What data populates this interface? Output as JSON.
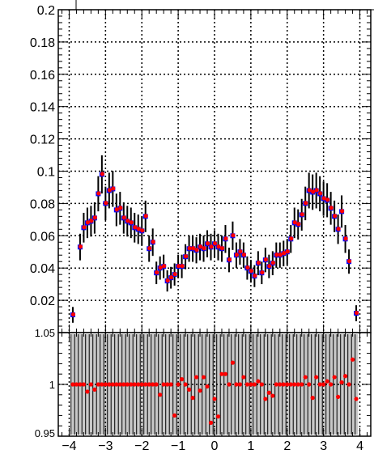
{
  "chart_data": [
    {
      "type": "scatter",
      "panel": "top",
      "xlim": [
        -4.3,
        4.3
      ],
      "ylim": [
        0,
        0.2
      ],
      "xticks": [
        -4,
        -3,
        -2,
        -1,
        0,
        1,
        2,
        3,
        4
      ],
      "xtick_labels": [
        "−4",
        "−3",
        "−2",
        "−1",
        "0",
        "1",
        "2",
        "3",
        "4"
      ],
      "yticks": [
        0,
        0.02,
        0.04,
        0.06,
        0.08,
        0.1,
        0.12,
        0.14,
        0.16,
        0.18,
        0.2
      ],
      "ytick_labels": [
        "",
        "0.02",
        "0.04",
        "0.06",
        "0.08",
        "0.1",
        "0.12",
        "0.14",
        "0.16",
        "0.18",
        "0.2"
      ],
      "grid": true,
      "series": [
        {
          "color": "#0000ff",
          "marker": "square",
          "x": [
            -3.9,
            -3.7,
            -3.6,
            -3.5,
            -3.4,
            -3.3,
            -3.2,
            -3.1,
            -3.0,
            -2.9,
            -2.8,
            -2.7,
            -2.6,
            -2.5,
            -2.4,
            -2.3,
            -2.2,
            -2.1,
            -2.0,
            -1.9,
            -1.8,
            -1.7,
            -1.6,
            -1.5,
            -1.4,
            -1.3,
            -1.2,
            -1.1,
            -1.0,
            -0.9,
            -0.8,
            -0.7,
            -0.6,
            -0.5,
            -0.4,
            -0.3,
            -0.2,
            -0.1,
            0.0,
            0.1,
            0.2,
            0.3,
            0.4,
            0.5,
            0.6,
            0.7,
            0.8,
            0.9,
            1.0,
            1.1,
            1.2,
            1.3,
            1.4,
            1.5,
            1.6,
            1.7,
            1.8,
            1.9,
            2.0,
            2.1,
            2.2,
            2.3,
            2.4,
            2.5,
            2.6,
            2.7,
            2.8,
            2.9,
            3.0,
            3.1,
            3.2,
            3.3,
            3.4,
            3.5,
            3.6,
            3.7,
            3.9
          ],
          "y": [
            0.011,
            0.053,
            0.065,
            0.068,
            0.069,
            0.071,
            0.086,
            0.098,
            0.08,
            0.088,
            0.089,
            0.076,
            0.077,
            0.071,
            0.069,
            0.068,
            0.065,
            0.064,
            0.063,
            0.072,
            0.052,
            0.056,
            0.037,
            0.04,
            0.041,
            0.032,
            0.034,
            0.036,
            0.041,
            0.041,
            0.047,
            0.052,
            0.052,
            0.051,
            0.053,
            0.052,
            0.055,
            0.053,
            0.055,
            0.053,
            0.052,
            0.058,
            0.045,
            0.06,
            0.048,
            0.05,
            0.048,
            0.04,
            0.038,
            0.035,
            0.043,
            0.037,
            0.045,
            0.041,
            0.043,
            0.048,
            0.048,
            0.049,
            0.05,
            0.058,
            0.068,
            0.067,
            0.073,
            0.08,
            0.088,
            0.087,
            0.088,
            0.086,
            0.083,
            0.082,
            0.077,
            0.072,
            0.064,
            0.075,
            0.058,
            0.044,
            0.012
          ]
        },
        {
          "color": "#ff0000",
          "marker": "circle",
          "x": [
            -3.9,
            -3.7,
            -3.6,
            -3.5,
            -3.4,
            -3.3,
            -3.2,
            -3.1,
            -3.0,
            -2.9,
            -2.8,
            -2.7,
            -2.6,
            -2.5,
            -2.4,
            -2.3,
            -2.2,
            -2.1,
            -2.0,
            -1.9,
            -1.8,
            -1.7,
            -1.6,
            -1.5,
            -1.4,
            -1.3,
            -1.2,
            -1.1,
            -1.0,
            -0.9,
            -0.8,
            -0.7,
            -0.6,
            -0.5,
            -0.4,
            -0.3,
            -0.2,
            -0.1,
            0.0,
            0.1,
            0.2,
            0.3,
            0.4,
            0.5,
            0.6,
            0.7,
            0.8,
            0.9,
            1.0,
            1.1,
            1.2,
            1.3,
            1.4,
            1.5,
            1.6,
            1.7,
            1.8,
            1.9,
            2.0,
            2.1,
            2.2,
            2.3,
            2.4,
            2.5,
            2.6,
            2.7,
            2.8,
            2.9,
            3.0,
            3.1,
            3.2,
            3.3,
            3.4,
            3.5,
            3.6,
            3.7,
            3.9
          ],
          "y": [
            0.011,
            0.053,
            0.065,
            0.068,
            0.069,
            0.071,
            0.086,
            0.098,
            0.08,
            0.088,
            0.089,
            0.076,
            0.077,
            0.071,
            0.069,
            0.068,
            0.065,
            0.064,
            0.063,
            0.072,
            0.052,
            0.056,
            0.037,
            0.04,
            0.041,
            0.032,
            0.034,
            0.036,
            0.041,
            0.041,
            0.047,
            0.052,
            0.052,
            0.051,
            0.053,
            0.052,
            0.055,
            0.053,
            0.055,
            0.053,
            0.052,
            0.058,
            0.045,
            0.06,
            0.048,
            0.05,
            0.048,
            0.04,
            0.038,
            0.035,
            0.043,
            0.037,
            0.045,
            0.041,
            0.043,
            0.048,
            0.048,
            0.049,
            0.05,
            0.058,
            0.068,
            0.067,
            0.073,
            0.08,
            0.088,
            0.087,
            0.088,
            0.086,
            0.083,
            0.082,
            0.077,
            0.072,
            0.064,
            0.075,
            0.058,
            0.044,
            0.012
          ]
        }
      ]
    },
    {
      "type": "scatter",
      "panel": "ratio",
      "xlim": [
        -4.3,
        4.3
      ],
      "ylim": [
        0.95,
        1.05
      ],
      "xticks": [
        -4,
        -3,
        -2,
        -1,
        0,
        1,
        2,
        3,
        4
      ],
      "xtick_labels": [
        "−4",
        "−3",
        "−2",
        "−1",
        "0",
        "1",
        "2",
        "3",
        "4"
      ],
      "yticks": [
        0.95,
        1,
        1.05
      ],
      "ytick_labels": [
        "0.95",
        "1",
        "1.05"
      ],
      "grid": true,
      "band_xlim": [
        -3.95,
        3.95
      ],
      "series": [
        {
          "color": "#ff0000",
          "marker": "circle",
          "x": [
            -3.9,
            -3.8,
            -3.7,
            -3.6,
            -3.5,
            -3.4,
            -3.3,
            -3.2,
            -3.1,
            -3.0,
            -2.9,
            -2.8,
            -2.7,
            -2.6,
            -2.5,
            -2.4,
            -2.3,
            -2.2,
            -2.1,
            -2.0,
            -1.9,
            -1.8,
            -1.7,
            -1.6,
            -1.5,
            -1.4,
            -1.3,
            -1.2,
            -1.1,
            -1.0,
            -0.9,
            -0.8,
            -0.7,
            -0.6,
            -0.5,
            -0.4,
            -0.3,
            -0.2,
            -0.1,
            0.0,
            0.1,
            0.2,
            0.3,
            0.4,
            0.5,
            0.6,
            0.7,
            0.8,
            0.9,
            1.0,
            1.1,
            1.2,
            1.3,
            1.4,
            1.5,
            1.6,
            1.7,
            1.8,
            1.9,
            2.0,
            2.1,
            2.2,
            2.3,
            2.4,
            2.5,
            2.6,
            2.7,
            2.8,
            2.9,
            3.0,
            3.1,
            3.2,
            3.3,
            3.4,
            3.5,
            3.6,
            3.7,
            3.8,
            3.9
          ],
          "y": [
            1,
            1,
            1,
            1,
            0.993,
            1,
            0.995,
            1,
            1,
            1,
            1,
            1,
            1,
            1,
            1,
            1,
            1,
            1,
            1,
            1,
            1,
            1,
            1,
            1,
            0.99,
            1,
            1,
            1,
            0.97,
            1,
            1.005,
            1,
            0.995,
            0.987,
            1.007,
            0.994,
            1.007,
            0.998,
            0.963,
            0.986,
            0.969,
            1.01,
            1.01,
            1,
            1.021,
            1,
            1,
            1.007,
            1,
            1,
            1,
            1.003,
            1,
            0.986,
            0.992,
            0.989,
            1,
            1,
            1,
            1,
            1,
            1,
            1,
            1,
            1.007,
            1,
            0.987,
            1.007,
            1,
            1,
            1.003,
            1,
            1.007,
            0.988,
            1.002,
            1.008,
            1,
            1.024,
            0.986
          ]
        }
      ]
    }
  ]
}
